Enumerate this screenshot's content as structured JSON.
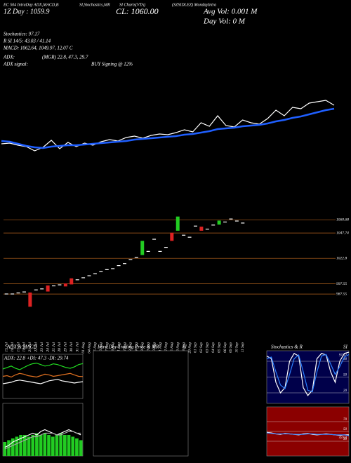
{
  "chart_data": [
    {
      "type": "line",
      "header": [
        "EC 504 IntraDay ADX,MACD,B",
        "SI,Stochastics,MR",
        "SI Charts(VTA)",
        "(SZSIDLEZ) MondayIntra",
        "1Z Day : 1059.9",
        "CL: 1060.00",
        "Avg Vol: 0.001 M",
        "Day Vol: 0  M"
      ],
      "info": [
        "Stochastics: 97.17",
        "R SI 14/5: 43.03 / 41.14",
        "MACD: 1062.64, 1049.97, 12.07 C",
        "ADX:",
        "(MGR) 22.8, 47.3, 29.7",
        "ADX  signal:",
        "BUY Signing @ 12%"
      ],
      "series": [
        {
          "color": "#ffffff",
          "values": [
            1000,
            1001,
            998,
            996,
            990,
            995,
            1005,
            993,
            1002,
            996,
            1001,
            998,
            1003,
            1006,
            1004,
            1009,
            1011,
            1008,
            1012,
            1014,
            1013,
            1016,
            1020,
            1017,
            1030,
            1025,
            1040,
            1026,
            1024,
            1034,
            1030,
            1028,
            1036,
            1048,
            1040,
            1052,
            1050,
            1058,
            1060,
            1062,
            1055
          ]
        },
        {
          "color": "#1f5fff",
          "values": [
            1004,
            1003,
            1000,
            997,
            995,
            994,
            996,
            997,
            998,
            998,
            999,
            1000,
            1001,
            1002,
            1003,
            1004,
            1006,
            1007,
            1008,
            1009,
            1010,
            1011,
            1013,
            1014,
            1016,
            1018,
            1021,
            1022,
            1023,
            1025,
            1026,
            1027,
            1029,
            1032,
            1034,
            1037,
            1039,
            1042,
            1045,
            1048,
            1050
          ]
        }
      ],
      "ylim": [
        960,
        1080
      ]
    },
    {
      "type": "candlestick",
      "categories": [
        "15 Jul",
        "16 Jul",
        "17 Jul",
        "18 Jul",
        "21 Jul",
        "22 Jul",
        "23 Jul",
        "24 Jul",
        "25 Jul",
        "28 Jul",
        "29 Jul",
        "30 Jul",
        "31 Jul",
        "01 Aug",
        "04 Aug",
        "05 Aug",
        "06 Aug",
        "07 Aug",
        "08 Aug",
        "11 Aug",
        "12 Aug",
        "13 Aug",
        "14 Aug",
        "18 Aug",
        "19 Aug",
        "20 Aug",
        "21 Aug",
        "22 Aug",
        "25 Aug",
        "26 Aug",
        "28 Aug",
        "29 Aug",
        "01 Sep",
        "02 Sep",
        "03 Sep",
        "04 Sep",
        "05 Sep",
        "08 Sep",
        "09 Sep",
        "10 Sep",
        "11 Sep"
      ],
      "open": [
        988,
        988,
        989,
        990,
        989,
        992,
        993,
        996,
        996,
        997,
        998,
        1003,
        1002,
        1004,
        1006,
        1008,
        1010,
        1012,
        1013,
        1016,
        1018,
        1022,
        1024,
        1026,
        1030,
        1042,
        1030,
        1034,
        1048,
        1050,
        1046,
        1044,
        1055,
        1054,
        1052,
        1056,
        1056,
        1059,
        1062,
        1060,
        1058
      ],
      "close": [
        988,
        988,
        989,
        990,
        975,
        992,
        993,
        990,
        996,
        997,
        995,
        997,
        1002,
        1004,
        1006,
        1008,
        1010,
        1012,
        1013,
        1016,
        1018,
        1022,
        1024,
        1040,
        1030,
        1042,
        1030,
        1034,
        1040,
        1064,
        1046,
        1044,
        1055,
        1050,
        1052,
        1056,
        1060,
        1059,
        1062,
        1060,
        1058
      ],
      "colors": {
        "up": "#22cc22",
        "down": "#dd2222",
        "flat": "#ffffff"
      },
      "ylim": [
        980,
        1070
      ],
      "yticks": [
        1060.68,
        1047.74,
        1022.8,
        997.55,
        987.55
      ],
      "grid": true
    },
    {
      "type": "line",
      "title": "ADX & MACD",
      "subtitle": "ADX: 22.8  +DI: 47.3  -DI: 29.74",
      "background": "#000000",
      "series": [
        {
          "color": "#22dd22",
          "values": [
            40,
            42,
            44,
            41,
            39,
            42,
            45,
            47,
            48,
            46,
            44,
            45,
            47,
            46,
            44,
            42,
            41,
            43,
            46,
            47.3
          ]
        },
        {
          "color": "#e07020",
          "values": [
            30,
            31,
            29,
            32,
            34,
            33,
            31,
            30,
            29,
            31,
            33,
            32,
            30,
            31,
            32,
            33,
            34,
            32,
            30,
            29.74
          ]
        },
        {
          "color": "#ffffff",
          "values": [
            20,
            21,
            22,
            24,
            25,
            24,
            23,
            22,
            21,
            20,
            22,
            24,
            25,
            26,
            24,
            23,
            22,
            21,
            22,
            22.8
          ]
        }
      ],
      "ylim": [
        0,
        60
      ]
    },
    {
      "type": "macd",
      "background": "#000000",
      "bars": {
        "color": "#22cc22",
        "values": [
          8,
          9,
          10,
          11,
          12,
          12,
          11,
          12,
          13,
          12,
          13,
          12,
          11,
          12,
          13,
          12,
          12,
          11,
          10,
          9
        ]
      },
      "series": [
        {
          "color": "#ffffff",
          "values": [
            5,
            6,
            8,
            9,
            10,
            11,
            12,
            13,
            12,
            14,
            15,
            14,
            13,
            12,
            13,
            14,
            15,
            14,
            13,
            12.07
          ]
        },
        {
          "color": "#aaaaaa",
          "values": [
            4,
            5,
            6,
            7,
            8,
            9,
            10,
            11,
            11,
            12,
            13,
            13,
            13,
            12,
            12,
            13,
            14,
            14,
            13,
            13
          ]
        }
      ],
      "ylim": [
        0,
        30
      ]
    },
    {
      "type": "line",
      "title": "Intra  Day Trading Price  & MR",
      "subtitle": "SI",
      "background": "#000000",
      "series": [],
      "ylim": [
        0,
        1
      ]
    },
    {
      "type": "line",
      "title": "Stochastics & R",
      "subtitle": "SI",
      "background": "#00004a",
      "series": [
        {
          "color": "#ffffff",
          "values": [
            90,
            85,
            40,
            20,
            30,
            80,
            95,
            90,
            30,
            15,
            25,
            85,
            95,
            92,
            60,
            40,
            80,
            95,
            97.17
          ],
          "value_labels": [
            null,
            null,
            null,
            null,
            null,
            null,
            null,
            null,
            null,
            null,
            null,
            null,
            null,
            null,
            null,
            null,
            null,
            null,
            "97.17"
          ]
        },
        {
          "color": "#2a7fff",
          "values": [
            85,
            88,
            60,
            35,
            28,
            55,
            85,
            92,
            60,
            25,
            22,
            60,
            90,
            93,
            75,
            55,
            70,
            88,
            93
          ]
        }
      ],
      "ylim": [
        0,
        100
      ],
      "yticks": [
        20,
        50,
        80
      ],
      "grid": true
    },
    {
      "type": "line",
      "background": "#8b0000",
      "series": [
        {
          "color": "#ffffff",
          "values": [
            48,
            47,
            45,
            44,
            46,
            45,
            44,
            43,
            45,
            46,
            44,
            43,
            44,
            45,
            44,
            43,
            42,
            43,
            43.03
          ],
          "value_labels": [
            null,
            null,
            null,
            null,
            null,
            null,
            null,
            null,
            null,
            null,
            null,
            null,
            null,
            null,
            null,
            null,
            null,
            null,
            "43.03"
          ]
        },
        {
          "color": "#2a7fff",
          "values": [
            47,
            46,
            45,
            45,
            45,
            45,
            44,
            44,
            44,
            45,
            45,
            44,
            44,
            44,
            44,
            43,
            43,
            43,
            41.14
          ]
        }
      ],
      "ylim": [
        0,
        100
      ],
      "yticks": [
        30,
        50,
        70
      ],
      "grid": true
    }
  ]
}
